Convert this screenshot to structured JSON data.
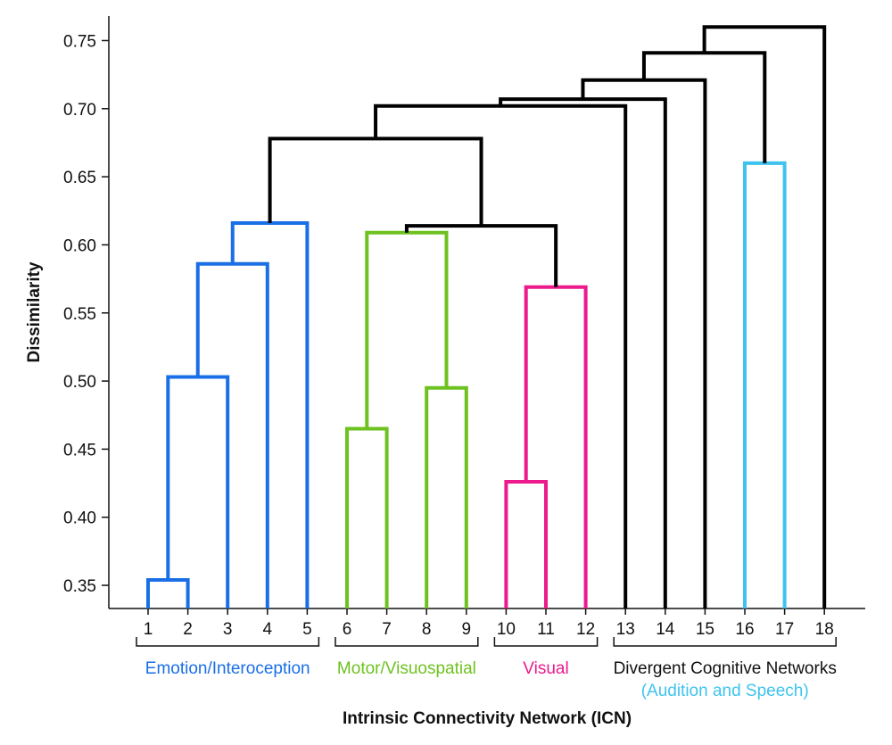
{
  "chart_data": {
    "type": "dendrogram",
    "xlabel": "Intrinsic Connectivity Network (ICN)",
    "ylabel": "Dissimilarity",
    "ylim": [
      0.333,
      0.768
    ],
    "yticks": [
      "0.35",
      "0.40",
      "0.45",
      "0.50",
      "0.55",
      "0.60",
      "0.65",
      "0.70",
      "0.75"
    ],
    "leaves": [
      "1",
      "2",
      "3",
      "4",
      "5",
      "6",
      "7",
      "8",
      "9",
      "10",
      "11",
      "12",
      "13",
      "14",
      "15",
      "16",
      "17",
      "18"
    ],
    "merges": [
      {
        "a": "1",
        "b": "2",
        "height": 0.354,
        "color": "#1a6fe6"
      },
      {
        "a": "10",
        "b": "11",
        "height": 0.426,
        "color": "#ec1a8c"
      },
      {
        "a": "6",
        "b": "7",
        "height": 0.465,
        "color": "#6ec21f"
      },
      {
        "a": "8",
        "b": "9",
        "height": 0.495,
        "color": "#6ec21f"
      },
      {
        "a": "m1",
        "b": "3",
        "height": 0.503,
        "color": "#1a6fe6"
      },
      {
        "a": "m2",
        "b": "12",
        "height": 0.569,
        "color": "#ec1a8c"
      },
      {
        "a": "m5",
        "b": "4",
        "height": 0.586,
        "color": "#1a6fe6"
      },
      {
        "a": "m3",
        "b": "m4",
        "height": 0.609,
        "color": "#6ec21f"
      },
      {
        "a": "m8",
        "b": "m6",
        "height": 0.614,
        "color": "#000000"
      },
      {
        "a": "m7",
        "b": "5",
        "height": 0.616,
        "color": "#1a6fe6"
      },
      {
        "a": "16",
        "b": "17",
        "height": 0.66,
        "color": "#3ec3ee"
      },
      {
        "a": "m10",
        "b": "m9",
        "height": 0.678,
        "color": "#000000"
      },
      {
        "a": "m12",
        "b": "13",
        "height": 0.702,
        "color": "#000000"
      },
      {
        "a": "m13",
        "b": "14",
        "height": 0.707,
        "color": "#000000"
      },
      {
        "a": "m14",
        "b": "15",
        "height": 0.721,
        "color": "#000000"
      },
      {
        "a": "m15",
        "b": "m11",
        "height": 0.741,
        "color": "#000000"
      },
      {
        "a": "m16",
        "b": "18",
        "height": 0.76,
        "color": "#000000"
      }
    ],
    "groups": [
      {
        "label": "Emotion/Interoception",
        "sublabel": "",
        "from": "1",
        "to": "5",
        "color": "#1a6fe6",
        "sublabel_color": ""
      },
      {
        "label": "Motor/Visuospatial",
        "sublabel": "",
        "from": "6",
        "to": "9",
        "color": "#6ec21f",
        "sublabel_color": ""
      },
      {
        "label": "Visual",
        "sublabel": "",
        "from": "10",
        "to": "12",
        "color": "#ec1a8c",
        "sublabel_color": ""
      },
      {
        "label": "Divergent Cognitive Networks",
        "sublabel": "(Audition and Speech)",
        "from": "13",
        "to": "18",
        "color": "#111111",
        "sublabel_color": "#3ec3ee"
      }
    ]
  }
}
